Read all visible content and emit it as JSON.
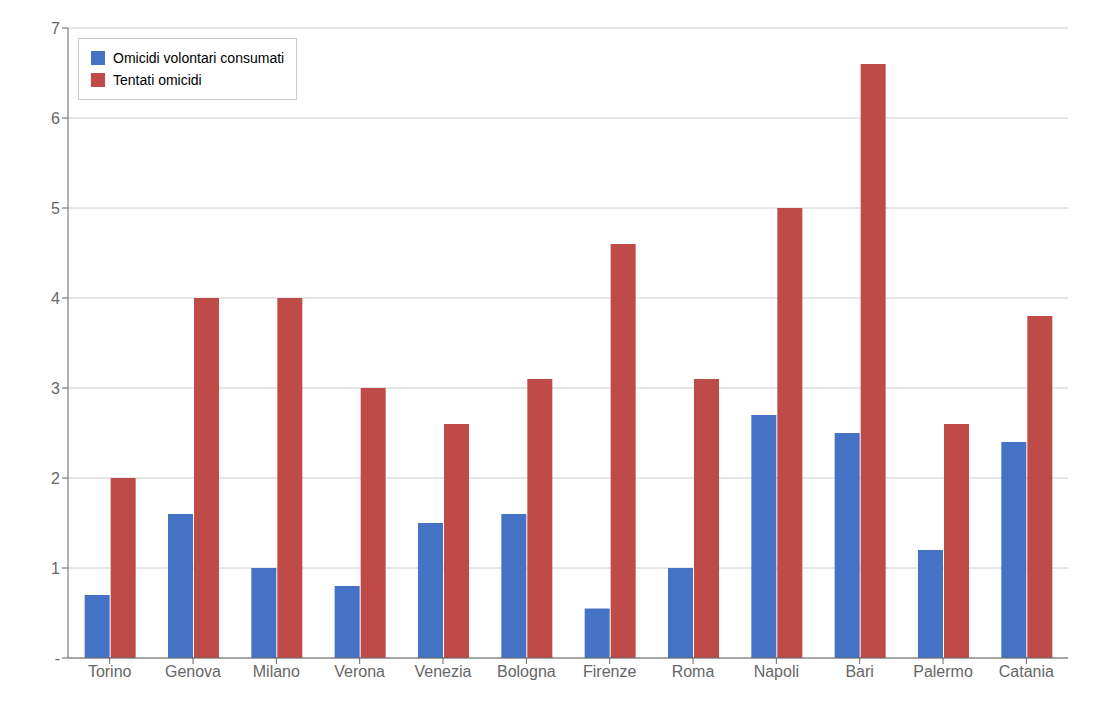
{
  "chart_data": {
    "type": "bar",
    "categories": [
      "Torino",
      "Genova",
      "Milano",
      "Verona",
      "Venezia",
      "Bologna",
      "Firenze",
      "Roma",
      "Napoli",
      "Bari",
      "Palermo",
      "Catania"
    ],
    "series": [
      {
        "name": "Omicidi volontari consumati",
        "color": "#4472C4",
        "values": [
          0.7,
          1.6,
          1.0,
          0.8,
          1.5,
          1.6,
          0.55,
          1.0,
          2.7,
          2.5,
          1.2,
          2.4
        ]
      },
      {
        "name": "Tentati omicidi",
        "color": "#BE4B48",
        "values": [
          2.0,
          4.0,
          4.0,
          3.0,
          2.6,
          3.1,
          4.6,
          3.1,
          5.0,
          6.6,
          2.6,
          3.8
        ]
      }
    ],
    "ylim": [
      0,
      7
    ],
    "yticks": [
      {
        "value": 0,
        "label": "-"
      },
      1,
      2,
      3,
      4,
      5,
      6,
      7
    ],
    "grid": true,
    "legend": "upper left"
  }
}
